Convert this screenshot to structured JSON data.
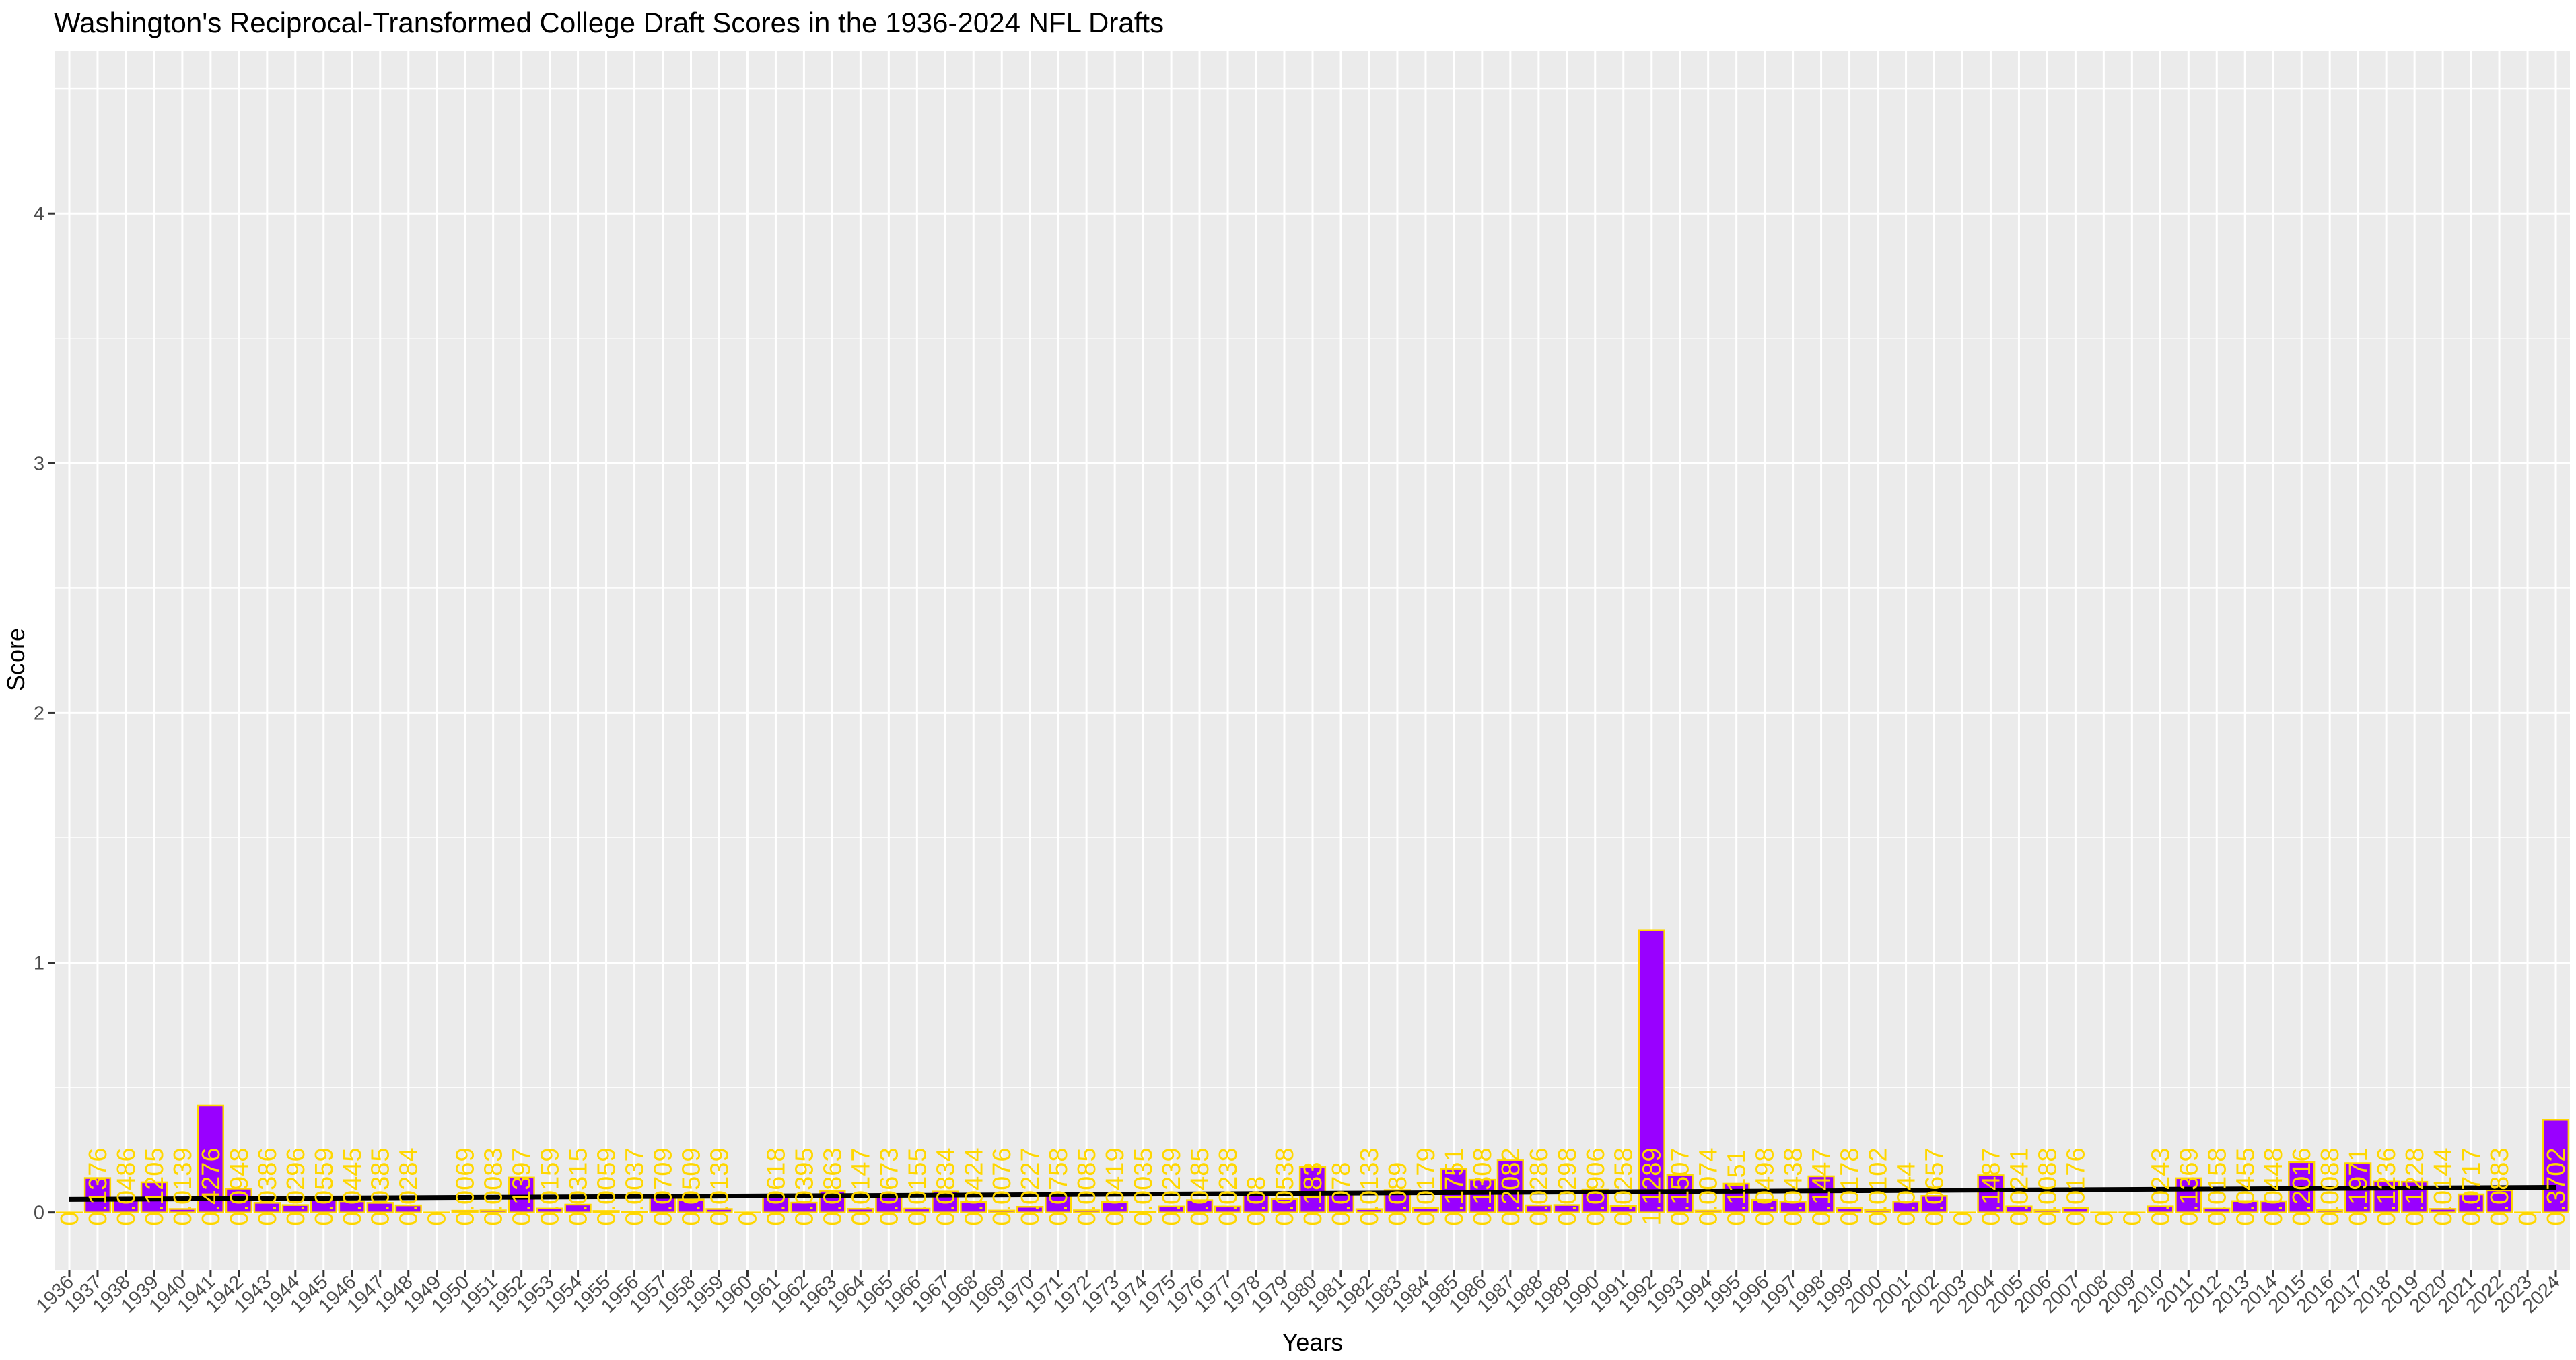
{
  "chart_data": {
    "type": "bar",
    "title": "Washington's Reciprocal-Transformed College Draft Scores in the 1936-2024 NFL Drafts",
    "xlabel": "Years",
    "ylabel": "Score",
    "ylim": [
      -0.23,
      4.65
    ],
    "yticks": [
      0,
      1,
      2,
      3,
      4
    ],
    "grid": true,
    "legend": "none",
    "colors": {
      "bar_fill": "#9900ff",
      "bar_outline": "#ffd700",
      "label": "#ffd700",
      "trend": "#000000",
      "panel": "#ebebeb",
      "grid": "#ffffff"
    },
    "categories": [
      "1936",
      "1937",
      "1938",
      "1939",
      "1940",
      "1941",
      "1942",
      "1943",
      "1944",
      "1945",
      "1946",
      "1947",
      "1948",
      "1949",
      "1950",
      "1951",
      "1952",
      "1953",
      "1954",
      "1955",
      "1956",
      "1957",
      "1958",
      "1959",
      "1960",
      "1961",
      "1962",
      "1963",
      "1964",
      "1965",
      "1966",
      "1967",
      "1968",
      "1969",
      "1970",
      "1971",
      "1972",
      "1973",
      "1974",
      "1975",
      "1976",
      "1977",
      "1978",
      "1979",
      "1980",
      "1981",
      "1982",
      "1983",
      "1984",
      "1985",
      "1986",
      "1987",
      "1988",
      "1989",
      "1990",
      "1991",
      "1992",
      "1993",
      "1994",
      "1995",
      "1996",
      "1997",
      "1998",
      "1999",
      "2000",
      "2001",
      "2002",
      "2003",
      "2004",
      "2005",
      "2006",
      "2007",
      "2008",
      "2009",
      "2010",
      "2011",
      "2012",
      "2013",
      "2014",
      "2015",
      "2016",
      "2017",
      "2018",
      "2019",
      "2020",
      "2021",
      "2022",
      "2023",
      "2024"
    ],
    "values": [
      0,
      0.1376,
      0.0486,
      0.1205,
      0.0139,
      0.4276,
      0.0948,
      0.0386,
      0.0296,
      0.0559,
      0.0445,
      0.0385,
      0.0284,
      0,
      0.0069,
      0.0083,
      0.1397,
      0.0159,
      0.0315,
      0.0059,
      0.0037,
      0.0709,
      0.0509,
      0.0139,
      0,
      0.0618,
      0.0395,
      0.0863,
      0.0147,
      0.0673,
      0.0155,
      0.0834,
      0.0424,
      0.0076,
      0.0227,
      0.0758,
      0.0085,
      0.0419,
      0.0035,
      0.0239,
      0.0485,
      0.0238,
      0.08,
      0.0538,
      0.183,
      0.078,
      0.0133,
      0.089,
      0.0179,
      0.1751,
      0.1308,
      0.2082,
      0.0286,
      0.0298,
      0.0906,
      0.0258,
      1.1289,
      0.1507,
      0.0074,
      0.1151,
      0.0498,
      0.0438,
      0.1447,
      0.0178,
      0.0102,
      0.044,
      0.0657,
      0,
      0.1487,
      0.0241,
      0.0088,
      0.0176,
      0,
      0,
      0.0243,
      0.1369,
      0.0158,
      0.0455,
      0.0448,
      0.2016,
      0.0088,
      0.1971,
      0.1236,
      0.1228,
      0.0144,
      0.0717,
      0.0883,
      0,
      0.3702
    ],
    "labels": [
      "0",
      "0.1376",
      "0.0486",
      "0.1205",
      "0.0139",
      "0.4276",
      "0.0948",
      "0.0386",
      "0.0296",
      "0.0559",
      "0.0445",
      "0.0385",
      "0.0284",
      "0",
      "0.0069",
      "0.0083",
      "0.1397",
      "0.0159",
      "0.0315",
      "0.0059",
      "0.0037",
      "0.0709",
      "0.0509",
      "0.0139",
      "0",
      "0.0618",
      "0.0395",
      "0.0863",
      "0.0147",
      "0.0673",
      "0.0155",
      "0.0834",
      "0.0424",
      "0.0076",
      "0.0227",
      "0.0758",
      "0.0085",
      "0.0419",
      "0.0035",
      "0.0239",
      "0.0485",
      "0.0238",
      "0.08",
      "0.0538",
      "0.183",
      "0.078",
      "0.0133",
      "0.089",
      "0.0179",
      "0.1751",
      "0.1308",
      "0.2082",
      "0.0286",
      "0.0298",
      "0.0906",
      "0.0258",
      "1.1289",
      "0.1507",
      "0.0074",
      "0.1151",
      "0.0498",
      "0.0438",
      "0.1447",
      "0.0178",
      "0.0102",
      "0.044",
      "0.0657",
      "0",
      "0.1487",
      "0.0241",
      "0.0088",
      "0.0176",
      "0",
      "0",
      "0.0243",
      "0.1369",
      "0.0158",
      "0.0455",
      "0.0448",
      "0.2016",
      "0.0088",
      "0.1971",
      "0.1236",
      "0.1228",
      "0.0144",
      "0.0717",
      "0.0883",
      "0",
      "0.3702"
    ],
    "trend": [
      0.052,
      0.1002
    ]
  }
}
